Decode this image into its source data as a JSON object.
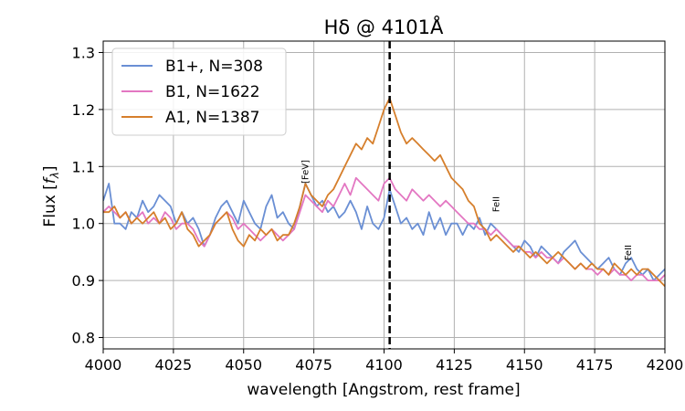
{
  "chart_data": {
    "type": "line",
    "title": "Hδ @ 4101Å",
    "xlabel": "wavelength [Angstrom, rest frame]",
    "ylabel": "Flux [f_λ]",
    "xlim": [
      4000,
      4200
    ],
    "ylim": [
      0.78,
      1.32
    ],
    "xticks": [
      4000,
      4025,
      4050,
      4075,
      4100,
      4125,
      4150,
      4175,
      4200
    ],
    "yticks": [
      0.8,
      0.9,
      1.0,
      1.1,
      1.2,
      1.3
    ],
    "xtick_labels": [
      "4000",
      "4025",
      "4050",
      "4075",
      "4100",
      "4125",
      "4150",
      "4175",
      "4200"
    ],
    "ytick_labels": [
      "0.8",
      "0.9",
      "1.0",
      "1.1",
      "1.2",
      "1.3"
    ],
    "grid": true,
    "legend_position": "top-left",
    "vline": {
      "x": 4102,
      "style": "dashed",
      "color": "#000000"
    },
    "annotations": [
      {
        "text": "[FeV]",
        "x": 4073,
        "y": 1.07
      },
      {
        "text": "FeII",
        "x": 4141,
        "y": 1.02
      },
      {
        "text": "FeII",
        "x": 4188,
        "y": 0.935
      }
    ],
    "series": [
      {
        "name": "B1+, N=308",
        "color": "#6a8fd4",
        "x": [
          4000,
          4002,
          4004,
          4006,
          4008,
          4010,
          4012,
          4014,
          4016,
          4018,
          4020,
          4022,
          4024,
          4026,
          4028,
          4030,
          4032,
          4034,
          4036,
          4038,
          4040,
          4042,
          4044,
          4046,
          4048,
          4050,
          4052,
          4054,
          4056,
          4058,
          4060,
          4062,
          4064,
          4066,
          4068,
          4070,
          4072,
          4074,
          4076,
          4078,
          4080,
          4082,
          4084,
          4086,
          4088,
          4090,
          4092,
          4094,
          4096,
          4098,
          4100,
          4102,
          4104,
          4106,
          4108,
          4110,
          4112,
          4114,
          4116,
          4118,
          4120,
          4122,
          4124,
          4126,
          4128,
          4130,
          4132,
          4134,
          4136,
          4138,
          4140,
          4142,
          4144,
          4146,
          4148,
          4150,
          4152,
          4154,
          4156,
          4158,
          4160,
          4162,
          4164,
          4166,
          4168,
          4170,
          4172,
          4174,
          4176,
          4178,
          4180,
          4182,
          4184,
          4186,
          4188,
          4190,
          4192,
          4194,
          4196,
          4198,
          4200
        ],
        "values": [
          1.04,
          1.07,
          1.0,
          1.0,
          0.99,
          1.02,
          1.01,
          1.04,
          1.02,
          1.03,
          1.05,
          1.04,
          1.03,
          1.0,
          1.02,
          1.0,
          1.01,
          0.99,
          0.96,
          0.98,
          1.01,
          1.03,
          1.04,
          1.02,
          1.0,
          1.04,
          1.02,
          1.0,
          0.99,
          1.03,
          1.05,
          1.01,
          1.02,
          1.0,
          0.99,
          1.03,
          1.07,
          1.05,
          1.03,
          1.04,
          1.02,
          1.03,
          1.01,
          1.02,
          1.04,
          1.02,
          0.99,
          1.03,
          1.0,
          0.99,
          1.01,
          1.06,
          1.03,
          1.0,
          1.01,
          0.99,
          1.0,
          0.98,
          1.02,
          0.99,
          1.01,
          0.98,
          1.0,
          1.0,
          0.98,
          1.0,
          0.99,
          1.01,
          0.98,
          1.0,
          0.99,
          0.98,
          0.97,
          0.96,
          0.95,
          0.97,
          0.96,
          0.94,
          0.96,
          0.95,
          0.94,
          0.93,
          0.95,
          0.96,
          0.97,
          0.95,
          0.94,
          0.93,
          0.92,
          0.93,
          0.94,
          0.92,
          0.91,
          0.93,
          0.94,
          0.92,
          0.91,
          0.92,
          0.9,
          0.91,
          0.92
        ]
      },
      {
        "name": "B1, N=1622",
        "color": "#e377c2",
        "x": [
          4000,
          4002,
          4004,
          4006,
          4008,
          4010,
          4012,
          4014,
          4016,
          4018,
          4020,
          4022,
          4024,
          4026,
          4028,
          4030,
          4032,
          4034,
          4036,
          4038,
          4040,
          4042,
          4044,
          4046,
          4048,
          4050,
          4052,
          4054,
          4056,
          4058,
          4060,
          4062,
          4064,
          4066,
          4068,
          4070,
          4072,
          4074,
          4076,
          4078,
          4080,
          4082,
          4084,
          4086,
          4088,
          4090,
          4092,
          4094,
          4096,
          4098,
          4100,
          4102,
          4104,
          4106,
          4108,
          4110,
          4112,
          4114,
          4116,
          4118,
          4120,
          4122,
          4124,
          4126,
          4128,
          4130,
          4132,
          4134,
          4136,
          4138,
          4140,
          4142,
          4144,
          4146,
          4148,
          4150,
          4152,
          4154,
          4156,
          4158,
          4160,
          4162,
          4164,
          4166,
          4168,
          4170,
          4172,
          4174,
          4176,
          4178,
          4180,
          4182,
          4184,
          4186,
          4188,
          4190,
          4192,
          4194,
          4196,
          4198,
          4200
        ],
        "values": [
          1.02,
          1.03,
          1.02,
          1.01,
          1.02,
          1.0,
          1.01,
          1.02,
          1.0,
          1.01,
          1.0,
          1.02,
          1.01,
          0.99,
          1.0,
          1.0,
          0.99,
          0.97,
          0.96,
          0.98,
          1.0,
          1.01,
          1.02,
          1.01,
          0.99,
          1.0,
          0.99,
          0.98,
          0.97,
          0.98,
          0.99,
          0.98,
          0.97,
          0.98,
          0.99,
          1.02,
          1.05,
          1.04,
          1.03,
          1.02,
          1.04,
          1.03,
          1.05,
          1.07,
          1.05,
          1.08,
          1.07,
          1.06,
          1.05,
          1.04,
          1.07,
          1.08,
          1.06,
          1.05,
          1.04,
          1.06,
          1.05,
          1.04,
          1.05,
          1.04,
          1.03,
          1.04,
          1.03,
          1.02,
          1.01,
          1.0,
          1.0,
          0.99,
          0.99,
          0.98,
          0.99,
          0.98,
          0.97,
          0.96,
          0.96,
          0.95,
          0.95,
          0.94,
          0.95,
          0.94,
          0.94,
          0.93,
          0.94,
          0.93,
          0.92,
          0.93,
          0.92,
          0.92,
          0.91,
          0.92,
          0.91,
          0.92,
          0.91,
          0.91,
          0.9,
          0.91,
          0.91,
          0.9,
          0.9,
          0.9,
          0.91
        ]
      },
      {
        "name": "A1, N=1387",
        "color": "#d67f2c",
        "x": [
          4000,
          4002,
          4004,
          4006,
          4008,
          4010,
          4012,
          4014,
          4016,
          4018,
          4020,
          4022,
          4024,
          4026,
          4028,
          4030,
          4032,
          4034,
          4036,
          4038,
          4040,
          4042,
          4044,
          4046,
          4048,
          4050,
          4052,
          4054,
          4056,
          4058,
          4060,
          4062,
          4064,
          4066,
          4068,
          4070,
          4072,
          4074,
          4076,
          4078,
          4080,
          4082,
          4084,
          4086,
          4088,
          4090,
          4092,
          4094,
          4096,
          4098,
          4100,
          4102,
          4104,
          4106,
          4108,
          4110,
          4112,
          4114,
          4116,
          4118,
          4120,
          4122,
          4124,
          4126,
          4128,
          4130,
          4132,
          4134,
          4136,
          4138,
          4140,
          4142,
          4144,
          4146,
          4148,
          4150,
          4152,
          4154,
          4156,
          4158,
          4160,
          4162,
          4164,
          4166,
          4168,
          4170,
          4172,
          4174,
          4176,
          4178,
          4180,
          4182,
          4184,
          4186,
          4188,
          4190,
          4192,
          4194,
          4196,
          4198,
          4200
        ],
        "values": [
          1.02,
          1.02,
          1.03,
          1.01,
          1.02,
          1.0,
          1.01,
          1.0,
          1.01,
          1.02,
          1.0,
          1.01,
          0.99,
          1.0,
          1.02,
          0.99,
          0.98,
          0.96,
          0.97,
          0.98,
          1.0,
          1.01,
          1.02,
          0.99,
          0.97,
          0.96,
          0.98,
          0.97,
          0.99,
          0.98,
          0.99,
          0.97,
          0.98,
          0.98,
          1.0,
          1.03,
          1.07,
          1.05,
          1.04,
          1.03,
          1.05,
          1.06,
          1.08,
          1.1,
          1.12,
          1.14,
          1.13,
          1.15,
          1.14,
          1.17,
          1.2,
          1.22,
          1.19,
          1.16,
          1.14,
          1.15,
          1.14,
          1.13,
          1.12,
          1.11,
          1.12,
          1.1,
          1.08,
          1.07,
          1.06,
          1.04,
          1.03,
          1.0,
          0.99,
          0.97,
          0.98,
          0.97,
          0.96,
          0.95,
          0.96,
          0.95,
          0.94,
          0.95,
          0.94,
          0.93,
          0.94,
          0.95,
          0.94,
          0.93,
          0.92,
          0.93,
          0.92,
          0.93,
          0.92,
          0.92,
          0.91,
          0.93,
          0.92,
          0.91,
          0.92,
          0.91,
          0.92,
          0.92,
          0.91,
          0.9,
          0.89
        ]
      }
    ]
  }
}
